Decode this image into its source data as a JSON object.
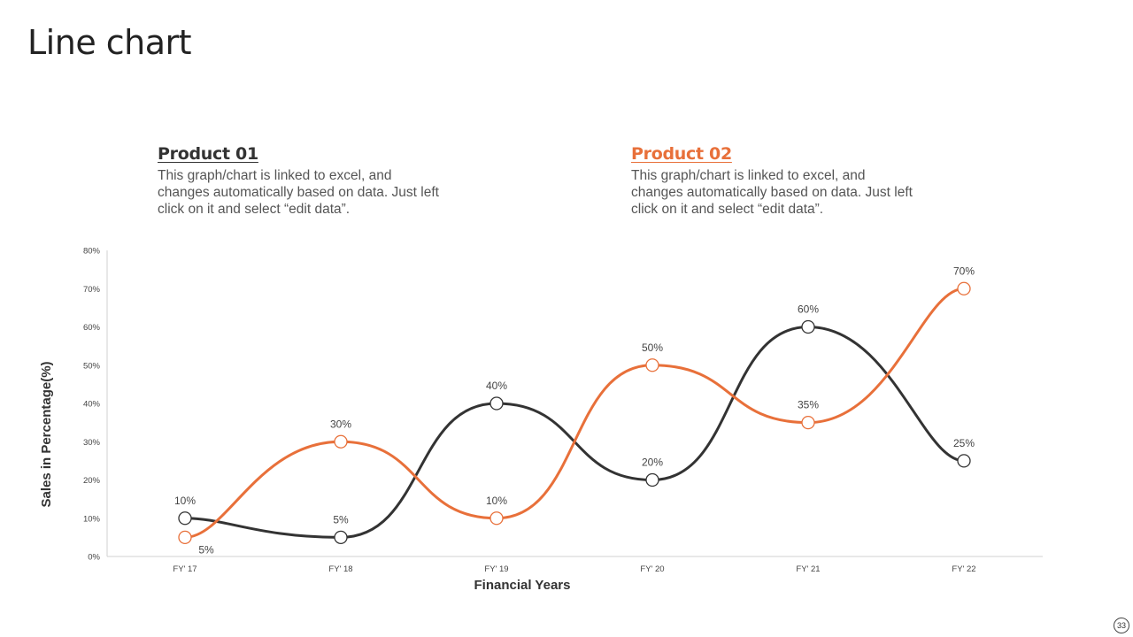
{
  "slide": {
    "title": "Line chart",
    "page_number": "33"
  },
  "legend": [
    {
      "title": "Product 01",
      "text": "This graph/chart is linked to excel, and changes automatically based on data. Just left click on it and select “edit data”."
    },
    {
      "title": "Product 02",
      "text": "This graph/chart is linked to excel, and changes automatically based on data. Just left click on it and select “edit data”."
    }
  ],
  "colors": {
    "product_01": "#333333",
    "product_02": "#E8703A",
    "axis": "#d0d0d0"
  },
  "chart_data": {
    "type": "line",
    "categories": [
      "FY' 17",
      "FY' 18",
      "FY' 19",
      "FY' 20",
      "FY' 21",
      "FY' 22"
    ],
    "series": [
      {
        "name": "Product 01",
        "values": [
          10,
          5,
          40,
          20,
          60,
          25
        ],
        "labels": [
          "10%",
          "5%",
          "40%",
          "20%",
          "60%",
          "25%"
        ]
      },
      {
        "name": "Product 02",
        "values": [
          5,
          30,
          10,
          50,
          35,
          70
        ],
        "labels": [
          "5%",
          "30%",
          "10%",
          "50%",
          "35%",
          "70%"
        ]
      }
    ],
    "yticks": [
      0,
      10,
      20,
      30,
      40,
      50,
      60,
      70,
      80
    ],
    "ytick_labels": [
      "0%",
      "10%",
      "20%",
      "30%",
      "40%",
      "50%",
      "60%",
      "70%",
      "80%"
    ],
    "ylim": [
      0,
      80
    ],
    "xlabel": "Financial Years",
    "ylabel": "Sales in Percentage(%)",
    "smooth": true,
    "grid": false
  }
}
